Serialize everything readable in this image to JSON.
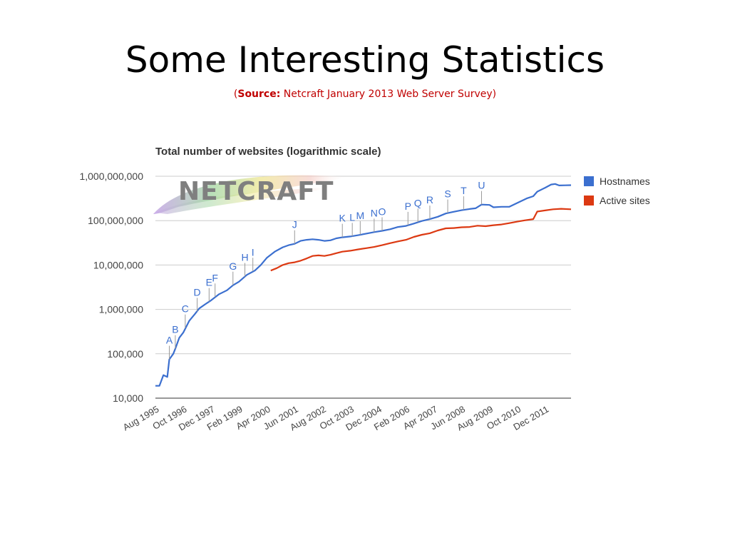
{
  "slide": {
    "title": "Some Interesting Statistics",
    "subtitle_open": "(",
    "subtitle_source_label": "Source:",
    "subtitle_rest": " Netcraft January 2013 Web Server Survey)"
  },
  "logo": {
    "text": "NETCRAFT"
  },
  "colors": {
    "hostnames": "#3b6fcf",
    "active_sites": "#dc3912",
    "grid": "#cccccc",
    "label": "#444444",
    "annotation": "#3b6fcf"
  },
  "chart_data": {
    "type": "line",
    "title": "Total number of websites (logarithmic scale)",
    "y_scale": "log",
    "ylim": [
      10000,
      1000000000
    ],
    "y_ticks": [
      {
        "value": 10000,
        "label": "10,000"
      },
      {
        "value": 100000,
        "label": "100,000"
      },
      {
        "value": 1000000,
        "label": "1,000,000"
      },
      {
        "value": 10000000,
        "label": "10,000,000"
      },
      {
        "value": 100000000,
        "label": "100,000,000"
      },
      {
        "value": 1000000000,
        "label": "1,000,000,000"
      }
    ],
    "xlim": [
      "1995-08",
      "2013-01"
    ],
    "x_ticks": [
      {
        "date": "1995-08",
        "label": "Aug 1995"
      },
      {
        "date": "1996-10",
        "label": "Oct 1996"
      },
      {
        "date": "1997-12",
        "label": "Dec 1997"
      },
      {
        "date": "1999-02",
        "label": "Feb 1999"
      },
      {
        "date": "2000-04",
        "label": "Apr 2000"
      },
      {
        "date": "2001-06",
        "label": "Jun 2001"
      },
      {
        "date": "2002-08",
        "label": "Aug 2002"
      },
      {
        "date": "2003-10",
        "label": "Oct 2003"
      },
      {
        "date": "2004-12",
        "label": "Dec 2004"
      },
      {
        "date": "2006-02",
        "label": "Feb 2006"
      },
      {
        "date": "2007-04",
        "label": "Apr 2007"
      },
      {
        "date": "2008-06",
        "label": "Jun 2008"
      },
      {
        "date": "2009-08",
        "label": "Aug 2009"
      },
      {
        "date": "2010-10",
        "label": "Oct 2010"
      },
      {
        "date": "2011-12",
        "label": "Dec 2011"
      }
    ],
    "legend_position": "right",
    "series": [
      {
        "name": "Hostnames",
        "color": "#3b6fcf",
        "points": [
          [
            "1995-08",
            19000
          ],
          [
            "1995-10",
            19000
          ],
          [
            "1995-12",
            33000
          ],
          [
            "1996-02",
            30000
          ],
          [
            "1996-03",
            75000
          ],
          [
            "1996-05",
            100000
          ],
          [
            "1996-06",
            130000
          ],
          [
            "1996-08",
            230000
          ],
          [
            "1996-10",
            300000
          ],
          [
            "1997-01",
            550000
          ],
          [
            "1997-04",
            800000
          ],
          [
            "1997-06",
            1050000
          ],
          [
            "1997-09",
            1300000
          ],
          [
            "1997-12",
            1600000
          ],
          [
            "1998-04",
            2200000
          ],
          [
            "1998-08",
            2700000
          ],
          [
            "1998-11",
            3500000
          ],
          [
            "1999-02",
            4200000
          ],
          [
            "1999-06",
            6000000
          ],
          [
            "1999-10",
            7500000
          ],
          [
            "2000-01",
            10000000
          ],
          [
            "2000-04",
            14500000
          ],
          [
            "2000-08",
            20000000
          ],
          [
            "2000-12",
            25000000
          ],
          [
            "2001-03",
            28000000
          ],
          [
            "2001-06",
            30000000
          ],
          [
            "2001-09",
            35000000
          ],
          [
            "2001-12",
            37000000
          ],
          [
            "2002-03",
            38000000
          ],
          [
            "2002-06",
            37000000
          ],
          [
            "2002-09",
            35000000
          ],
          [
            "2002-12",
            36000000
          ],
          [
            "2003-03",
            40000000
          ],
          [
            "2003-06",
            42000000
          ],
          [
            "2003-10",
            44000000
          ],
          [
            "2004-02",
            47000000
          ],
          [
            "2004-06",
            51000000
          ],
          [
            "2004-10",
            55000000
          ],
          [
            "2005-02",
            59000000
          ],
          [
            "2005-06",
            64000000
          ],
          [
            "2005-10",
            72000000
          ],
          [
            "2006-02",
            76000000
          ],
          [
            "2006-06",
            86000000
          ],
          [
            "2006-10",
            98000000
          ],
          [
            "2007-02",
            108000000
          ],
          [
            "2007-06",
            122000000
          ],
          [
            "2007-10",
            145000000
          ],
          [
            "2008-02",
            158000000
          ],
          [
            "2008-06",
            172000000
          ],
          [
            "2008-10",
            183000000
          ],
          [
            "2009-01",
            190000000
          ],
          [
            "2009-04",
            230000000
          ],
          [
            "2009-08",
            226000000
          ],
          [
            "2009-10",
            200000000
          ],
          [
            "2010-02",
            205000000
          ],
          [
            "2010-06",
            205000000
          ],
          [
            "2010-10",
            250000000
          ],
          [
            "2011-03",
            320000000
          ],
          [
            "2011-06",
            355000000
          ],
          [
            "2011-08",
            450000000
          ],
          [
            "2011-12",
            550000000
          ],
          [
            "2012-03",
            650000000
          ],
          [
            "2012-05",
            670000000
          ],
          [
            "2012-07",
            620000000
          ],
          [
            "2012-10",
            625000000
          ],
          [
            "2013-01",
            630000000
          ]
        ]
      },
      {
        "name": "Active sites",
        "color": "#dc3912",
        "points": [
          [
            "2000-06",
            7500000
          ],
          [
            "2000-09",
            8500000
          ],
          [
            "2000-12",
            10000000
          ],
          [
            "2001-03",
            11000000
          ],
          [
            "2001-06",
            11500000
          ],
          [
            "2001-09",
            12500000
          ],
          [
            "2001-12",
            14000000
          ],
          [
            "2002-03",
            16000000
          ],
          [
            "2002-06",
            16500000
          ],
          [
            "2002-09",
            16000000
          ],
          [
            "2002-12",
            17000000
          ],
          [
            "2003-03",
            18500000
          ],
          [
            "2003-06",
            20000000
          ],
          [
            "2003-10",
            21000000
          ],
          [
            "2004-02",
            22500000
          ],
          [
            "2004-06",
            24000000
          ],
          [
            "2004-10",
            25500000
          ],
          [
            "2005-02",
            28000000
          ],
          [
            "2005-06",
            31000000
          ],
          [
            "2005-10",
            34000000
          ],
          [
            "2006-02",
            37000000
          ],
          [
            "2006-06",
            43000000
          ],
          [
            "2006-10",
            48000000
          ],
          [
            "2007-02",
            52000000
          ],
          [
            "2007-06",
            60000000
          ],
          [
            "2007-10",
            67000000
          ],
          [
            "2008-02",
            68000000
          ],
          [
            "2008-06",
            71000000
          ],
          [
            "2008-10",
            72000000
          ],
          [
            "2009-02",
            77000000
          ],
          [
            "2009-06",
            75000000
          ],
          [
            "2009-10",
            79000000
          ],
          [
            "2010-02",
            82000000
          ],
          [
            "2010-06",
            88000000
          ],
          [
            "2010-10",
            95000000
          ],
          [
            "2011-02",
            102000000
          ],
          [
            "2011-06",
            108000000
          ],
          [
            "2011-08",
            160000000
          ],
          [
            "2011-12",
            170000000
          ],
          [
            "2012-04",
            180000000
          ],
          [
            "2012-08",
            185000000
          ],
          [
            "2013-01",
            180000000
          ]
        ]
      }
    ],
    "annotations": [
      {
        "label": "A",
        "date": "1996-03",
        "value": 75000
      },
      {
        "label": "B",
        "date": "1996-06",
        "value": 130000
      },
      {
        "label": "C",
        "date": "1996-11",
        "value": 380000
      },
      {
        "label": "D",
        "date": "1997-05",
        "value": 900000
      },
      {
        "label": "E",
        "date": "1997-11",
        "value": 1500000
      },
      {
        "label": "F",
        "date": "1998-02",
        "value": 1900000
      },
      {
        "label": "G",
        "date": "1998-11",
        "value": 3500000
      },
      {
        "label": "H",
        "date": "1999-05",
        "value": 5500000
      },
      {
        "label": "I",
        "date": "1999-09",
        "value": 7200000
      },
      {
        "label": "J",
        "date": "2001-06",
        "value": 30000000
      },
      {
        "label": "K",
        "date": "2003-06",
        "value": 42000000
      },
      {
        "label": "L",
        "date": "2003-11",
        "value": 44000000
      },
      {
        "label": "M",
        "date": "2004-03",
        "value": 48000000
      },
      {
        "label": "N",
        "date": "2004-10",
        "value": 55000000
      },
      {
        "label": "O",
        "date": "2005-02",
        "value": 59000000
      },
      {
        "label": "P",
        "date": "2006-03",
        "value": 78000000
      },
      {
        "label": "Q",
        "date": "2006-08",
        "value": 92000000
      },
      {
        "label": "R",
        "date": "2007-02",
        "value": 108000000
      },
      {
        "label": "S",
        "date": "2007-11",
        "value": 148000000
      },
      {
        "label": "T",
        "date": "2008-07",
        "value": 175000000
      },
      {
        "label": "U",
        "date": "2009-04",
        "value": 230000000
      }
    ]
  }
}
